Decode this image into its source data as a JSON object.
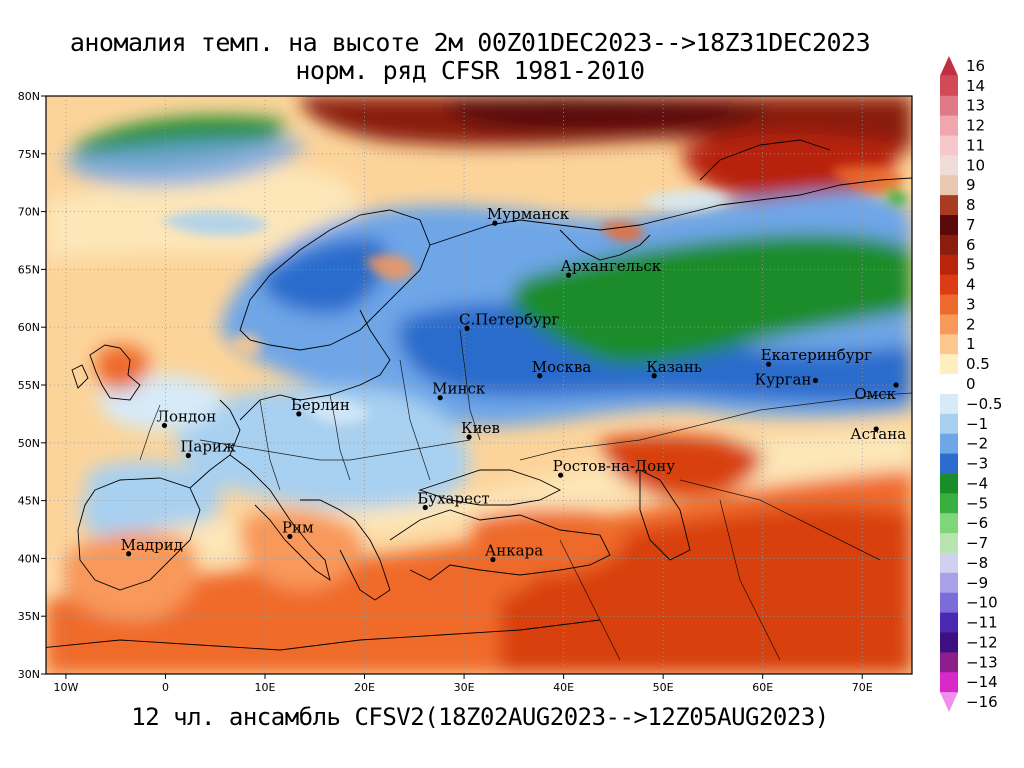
{
  "title_line1": "аномалия темп. на высоте 2м 00Z01DEC2023-->18Z31DEC2023",
  "title_line2": "норм. ряд CFSR 1981-2010",
  "footer": "12 чл. ансамбль CFSV2(18Z02AUG2023-->12Z05AUG2023)",
  "map": {
    "lon_range": [
      -12,
      75
    ],
    "lat_range": [
      30,
      80
    ],
    "lon_ticks": [
      {
        "value": -10,
        "label": "10W"
      },
      {
        "value": 0,
        "label": "0"
      },
      {
        "value": 10,
        "label": "10E"
      },
      {
        "value": 20,
        "label": "20E"
      },
      {
        "value": 30,
        "label": "30E"
      },
      {
        "value": 40,
        "label": "40E"
      },
      {
        "value": 50,
        "label": "50E"
      },
      {
        "value": 60,
        "label": "60E"
      },
      {
        "value": 70,
        "label": "70E"
      }
    ],
    "lat_ticks": [
      {
        "value": 30,
        "label": "30N"
      },
      {
        "value": 35,
        "label": "35N"
      },
      {
        "value": 40,
        "label": "40N"
      },
      {
        "value": 45,
        "label": "45N"
      },
      {
        "value": 50,
        "label": "50N"
      },
      {
        "value": 55,
        "label": "55N"
      },
      {
        "value": 60,
        "label": "60N"
      },
      {
        "value": 65,
        "label": "65N"
      },
      {
        "value": 70,
        "label": "70N"
      },
      {
        "value": 75,
        "label": "75N"
      },
      {
        "value": 80,
        "label": "80N"
      }
    ],
    "cities": [
      {
        "name": "Мурманск",
        "lon": 33.1,
        "lat": 69.0
      },
      {
        "name": "Архангельск",
        "lon": 40.5,
        "lat": 64.5
      },
      {
        "name": "С.Петербург",
        "lon": 30.3,
        "lat": 59.9
      },
      {
        "name": "Москва",
        "lon": 37.6,
        "lat": 55.8
      },
      {
        "name": "Казань",
        "lon": 49.1,
        "lat": 55.8
      },
      {
        "name": "Екатеринбург",
        "lon": 60.6,
        "lat": 56.8
      },
      {
        "name": "Курган",
        "lon": 65.3,
        "lat": 55.4
      },
      {
        "name": "Омск",
        "lon": 73.4,
        "lat": 55.0
      },
      {
        "name": "Астана",
        "lon": 71.4,
        "lat": 51.2
      },
      {
        "name": "Минск",
        "lon": 27.6,
        "lat": 53.9
      },
      {
        "name": "Берлин",
        "lon": 13.4,
        "lat": 52.5
      },
      {
        "name": "Лондон",
        "lon": -0.1,
        "lat": 51.5
      },
      {
        "name": "Париж",
        "lon": 2.3,
        "lat": 48.9
      },
      {
        "name": "Киев",
        "lon": 30.5,
        "lat": 50.5
      },
      {
        "name": "Ростов-на-Дону",
        "lon": 39.7,
        "lat": 47.2
      },
      {
        "name": "Бухарест",
        "lon": 26.1,
        "lat": 44.4
      },
      {
        "name": "Рим",
        "lon": 12.5,
        "lat": 41.9
      },
      {
        "name": "Мадрид",
        "lon": -3.7,
        "lat": 40.4
      },
      {
        "name": "Анкара",
        "lon": 32.9,
        "lat": 39.9
      }
    ]
  },
  "colorbar": {
    "labels": [
      "16",
      "14",
      "13",
      "12",
      "11",
      "10",
      "9",
      "8",
      "7",
      "6",
      "5",
      "4",
      "3",
      "2",
      "1",
      "0.5",
      "0",
      "−0.5",
      "−1",
      "−2",
      "−3",
      "−4",
      "−5",
      "−6",
      "−7",
      "−8",
      "−9",
      "−10",
      "−11",
      "−12",
      "−13",
      "−14",
      "−16"
    ],
    "colors": [
      "#c03040",
      "#d04a58",
      "#e07a86",
      "#f0a6ae",
      "#f6c8cc",
      "#f0dcd6",
      "#e8c8b0",
      "#a83c20",
      "#5a0a0a",
      "#8a1c10",
      "#b8240c",
      "#dc3c14",
      "#ee6a2c",
      "#f8985a",
      "#fcc890",
      "#ffeec0",
      "#ffffff",
      "#d6eaf8",
      "#a8d0f0",
      "#6ea6e8",
      "#2c6ccc",
      "#1a8c2a",
      "#38b040",
      "#80d47a",
      "#b8e4b0",
      "#d0d0f0",
      "#a8a0e8",
      "#7c6cd8",
      "#4a28b0",
      "#3c1080",
      "#8c1e8c",
      "#d828c8",
      "#f090ec"
    ]
  },
  "palette": {
    "ocean": "#fcd49a",
    "warm_strong": "#d8400e",
    "warm_mid": "#f06a2a",
    "warm_light": "#f8a260",
    "pale_warm": "#fde6b8",
    "cool_light": "#a8d0f0",
    "cool_mid": "#6ea6e8",
    "cool_strong": "#2c6ccc",
    "green": "#1a8c2a",
    "dark_red": "#6a0c0c"
  }
}
